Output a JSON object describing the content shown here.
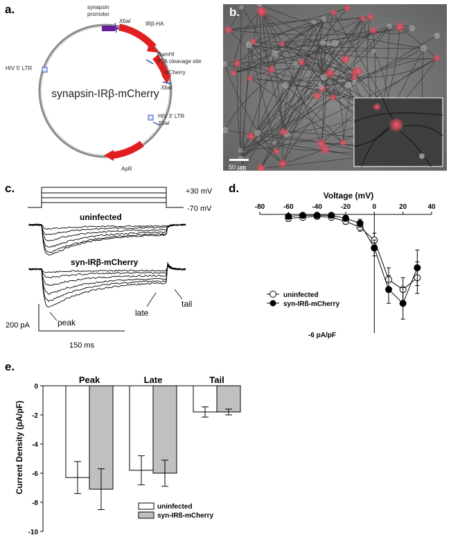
{
  "panels": {
    "a": "a.",
    "b": "b.",
    "c": "c.",
    "d": "d.",
    "e": "e."
  },
  "plasmid": {
    "name": "synapsin-IRβ-mCherry",
    "labels": {
      "promoter_line1": "synapsin",
      "promoter_line2": "promoter",
      "xbai_top": "XbaI",
      "irb_ha": "IRβ-HA",
      "bamhi": "BamHI",
      "p2a": "P2A cleavage site",
      "mcherry": "mCherry",
      "xbai_mid": "XbaI",
      "hiv5": "HIV 5' LTR",
      "hiv3": "HIV 3' LTR",
      "xbai_low": "XbaI",
      "apr": "ApR"
    },
    "colors": {
      "promoter": "#6a1b9a",
      "gene": "#e02020",
      "backbone": "#888888"
    }
  },
  "micrograph": {
    "scale_bar": "50 µm",
    "cell_color": "#e0485a"
  },
  "traces": {
    "voltage_high": "+30 mV",
    "voltage_low": "-70 mV",
    "label_uninfected": "uninfected",
    "label_syn": "syn-IRβ-mCherry",
    "peak": "peak",
    "late": "late",
    "tail": "tail",
    "scale_current": "200 pA",
    "scale_time": "150 ms"
  },
  "chart_data": [
    {
      "type": "line",
      "panel": "d",
      "xlabel": "Voltage (mV)",
      "ylabel": "-6 pA/pF",
      "x_ticks": [
        "-80",
        "-60",
        "-40",
        "-20",
        "0",
        "20",
        "40"
      ],
      "xlim": [
        -80,
        40
      ],
      "ylim": [
        -6,
        0
      ],
      "legend_position": "bottom-left",
      "series": [
        {
          "name": "uninfected",
          "marker": "open-circle",
          "x": [
            -60,
            -50,
            -40,
            -30,
            -20,
            -10,
            0,
            10,
            20,
            30
          ],
          "y": [
            -0.2,
            -0.15,
            -0.1,
            -0.15,
            -0.35,
            -0.65,
            -1.3,
            -3.3,
            -3.8,
            -3.2
          ],
          "err": [
            0.15,
            0.1,
            0.1,
            0.1,
            0.15,
            0.2,
            0.35,
            0.6,
            0.6,
            0.8
          ]
        },
        {
          "name": "syn-IRß-mCherry",
          "marker": "filled-circle",
          "x": [
            -60,
            -50,
            -40,
            -30,
            -20,
            -10,
            0,
            10,
            20,
            30
          ],
          "y": [
            -0.1,
            -0.05,
            -0.05,
            -0.05,
            -0.2,
            -0.45,
            -1.7,
            -3.8,
            -4.5,
            -2.7
          ],
          "err": [
            0.1,
            0.1,
            0.1,
            0.1,
            0.15,
            0.2,
            0.4,
            0.7,
            0.8,
            0.9
          ]
        }
      ]
    },
    {
      "type": "bar",
      "panel": "e",
      "ylabel": "Current Density (pA/pF)",
      "categories": [
        "Peak",
        "Late",
        "Tail"
      ],
      "ylim": [
        -10,
        0
      ],
      "y_ticks": [
        "0",
        "-2",
        "-4",
        "-6",
        "-8",
        "-10"
      ],
      "legend_position": "bottom-right",
      "series": [
        {
          "name": "uninfected",
          "color": "#ffffff",
          "values": [
            -6.3,
            -5.8,
            -1.8
          ],
          "err": [
            1.1,
            1.0,
            0.35
          ]
        },
        {
          "name": "syn-IRß-mCherry",
          "color": "#c0c0c0",
          "values": [
            -7.1,
            -6.0,
            -1.8
          ],
          "err": [
            1.4,
            0.9,
            0.2
          ]
        }
      ]
    }
  ]
}
